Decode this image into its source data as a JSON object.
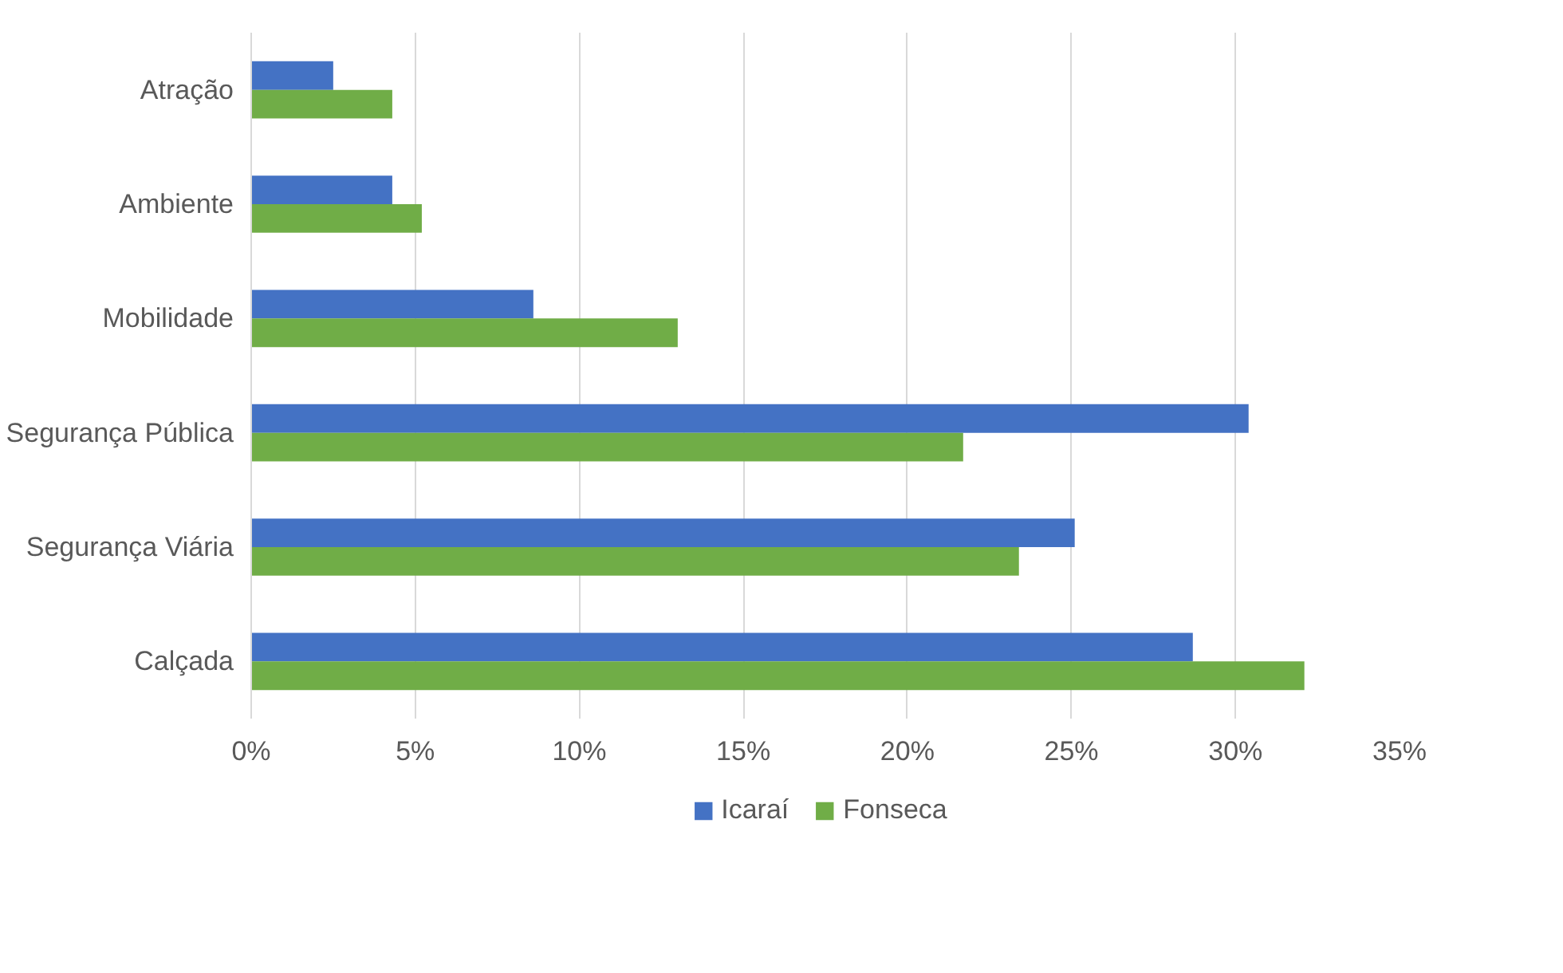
{
  "chart_data": {
    "type": "bar",
    "orientation": "horizontal",
    "categories": [
      "Atração",
      "Ambiente",
      "Mobilidade",
      "Segurança Pública",
      "Segurança Viária",
      "Calçada"
    ],
    "series": [
      {
        "name": "Icaraí",
        "color": "#4472c4",
        "values": [
          2.5,
          4.3,
          8.6,
          30.4,
          25.1,
          28.7
        ]
      },
      {
        "name": "Fonseca",
        "color": "#70ad47",
        "values": [
          4.3,
          5.2,
          13.0,
          21.7,
          23.4,
          32.1
        ]
      }
    ],
    "xlim": [
      0,
      35
    ],
    "xticks": [
      {
        "value": 0,
        "label": "0%"
      },
      {
        "value": 5,
        "label": "5%"
      },
      {
        "value": 10,
        "label": "10%"
      },
      {
        "value": 15,
        "label": "15%"
      },
      {
        "value": 20,
        "label": "20%"
      },
      {
        "value": 25,
        "label": "25%"
      },
      {
        "value": 30,
        "label": "30%"
      },
      {
        "value": 35,
        "label": "35%"
      }
    ],
    "grid": "x",
    "legend": "bottom"
  }
}
